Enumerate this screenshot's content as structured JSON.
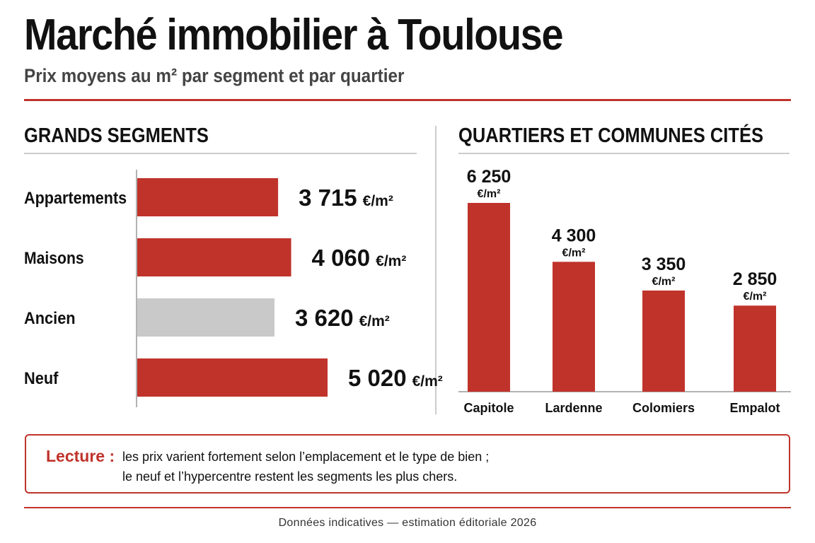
{
  "header": {
    "title": "Marché immobilier à Toulouse",
    "subtitle": "Prix moyens au m² par segment et par quartier"
  },
  "sections": {
    "left_title": "GRANDS SEGMENTS",
    "right_title": "QUARTIERS ET COMMUNES CITÉS"
  },
  "colors": {
    "accent": "#c0332b",
    "neutral_bar": "#c9c9c9",
    "text": "#111111",
    "rule": "#cccccc"
  },
  "chart_data": [
    {
      "type": "bar",
      "orientation": "horizontal",
      "title": "GRANDS SEGMENTS",
      "unit": "€/m²",
      "categories": [
        "Appartements",
        "Maisons",
        "Ancien",
        "Neuf"
      ],
      "values": [
        3715,
        4060,
        3620,
        5020
      ],
      "value_labels": [
        "3 715",
        "4 060",
        "3 620",
        "5 020"
      ],
      "bar_colors": [
        "#c0332b",
        "#c0332b",
        "#c9c9c9",
        "#c0332b"
      ],
      "grid": false
    },
    {
      "type": "bar",
      "orientation": "vertical",
      "title": "QUARTIERS ET COMMUNES CITÉS",
      "unit": "€/m²",
      "categories": [
        "Capitole",
        "Lardenne",
        "Colomiers",
        "Empalot"
      ],
      "values": [
        6250,
        4300,
        3350,
        2850
      ],
      "value_labels": [
        "6 250",
        "4 300",
        "3 350",
        "2 850"
      ],
      "bar_colors": [
        "#c0332b",
        "#c0332b",
        "#c0332b",
        "#c0332b"
      ],
      "grid": false
    }
  ],
  "note": {
    "label": "Lecture :",
    "line1": "les prix varient fortement selon l’emplacement et le type de bien ;",
    "line2": "le neuf et l’hypercentre restent les segments les plus chers."
  },
  "footer": {
    "source": "Données indicatives — estimation éditoriale 2026"
  }
}
